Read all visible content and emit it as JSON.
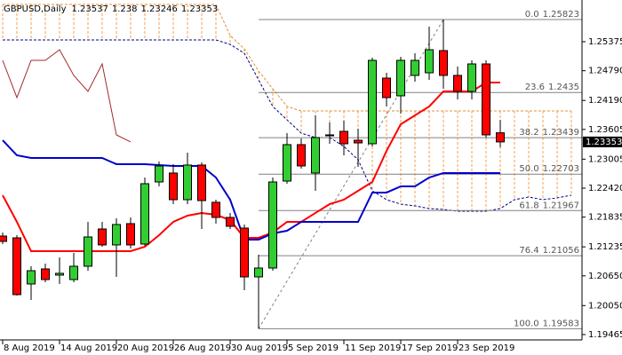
{
  "chart_data": {
    "type": "candlestick",
    "title": "GBPUSD,Daily",
    "categories": [
      "8 Aug 2019",
      null,
      null,
      null,
      "14 Aug 2019",
      null,
      null,
      null,
      "20 Aug 2019",
      null,
      null,
      null,
      "26 Aug 2019",
      null,
      null,
      null,
      "30 Aug 2019",
      null,
      null,
      null,
      "5 Sep 2019",
      null,
      null,
      null,
      "11 Sep 2019",
      null,
      null,
      null,
      "17 Sep 2019",
      null,
      null,
      null,
      "23 Sep 2019",
      null,
      null,
      null,
      null,
      null,
      null,
      null,
      null
    ],
    "open": [
      1.21453,
      1.21417,
      1.20486,
      1.2079,
      1.20665,
      1.20575,
      1.20844,
      1.21596,
      1.21274,
      1.21704,
      1.21292,
      1.22545,
      1.22725,
      1.22187,
      1.22886,
      1.22134,
      1.21829,
      1.21614,
      1.20629,
      1.20808,
      1.22563,
      1.23298,
      1.22725,
      1.23477,
      1.23566,
      1.23387,
      1.23316,
      1.24641,
      1.24283,
      1.24695,
      1.24748,
      1.25196,
      1.24695,
      1.24372,
      1.24927,
      1.23537,
      null,
      null,
      null,
      null,
      null
    ],
    "high": [
      1.21525,
      1.21471,
      1.20844,
      1.20898,
      1.21023,
      1.21113,
      1.21739,
      1.21739,
      1.21811,
      1.21829,
      1.22635,
      1.22957,
      1.22904,
      1.23136,
      1.22939,
      1.22187,
      1.21919,
      1.21686,
      1.21077,
      1.22635,
      1.2353,
      1.23423,
      1.23889,
      1.23745,
      1.23781,
      1.2362,
      1.25053,
      1.24748,
      1.25071,
      1.25142,
      1.2568,
      1.25823,
      1.24874,
      1.24999,
      1.24999,
      1.238,
      null,
      null,
      null,
      null,
      null
    ],
    "low": [
      1.21292,
      1.20253,
      1.20163,
      1.20522,
      1.20486,
      1.20522,
      1.20754,
      1.21238,
      1.20629,
      1.21202,
      1.21256,
      1.22456,
      1.22098,
      1.22098,
      1.21596,
      1.21704,
      1.21596,
      1.2036,
      1.19583,
      1.20754,
      1.2251,
      1.22814,
      1.22366,
      1.23316,
      1.23083,
      1.2285,
      1.23262,
      1.24068,
      1.23925,
      1.24569,
      1.24605,
      1.24426,
      1.24211,
      1.24211,
      1.23441,
      1.23246,
      null,
      null,
      null,
      null,
      null
    ],
    "close": [
      1.21345,
      1.20271,
      1.20754,
      1.20575,
      1.20701,
      1.20844,
      1.21435,
      1.21274,
      1.21686,
      1.21274,
      1.2251,
      1.22868,
      1.22187,
      1.22886,
      1.22169,
      1.21829,
      1.2165,
      1.20629,
      1.20808,
      1.22545,
      1.23298,
      1.22868,
      1.23441,
      1.23495,
      1.23316,
      1.23333,
      1.24999,
      1.24247,
      1.24999,
      1.24999,
      1.25214,
      1.24695,
      1.24372,
      1.24927,
      1.23495,
      1.23353,
      null,
      null,
      null,
      null,
      null
    ],
    "up_color": "#32cd32",
    "down_color": "#ff0000",
    "wick_color": "#000000",
    "lines": [
      {
        "color": "#ff0000",
        "width": 2,
        "values": [
          1.22277,
          1.21739,
          1.21148,
          1.21148,
          1.21148,
          1.21148,
          1.21148,
          1.21148,
          1.21148,
          1.21148,
          1.21238,
          1.21471,
          1.21739,
          1.21865,
          1.21919,
          1.21883,
          1.21775,
          1.21417,
          1.21417,
          1.21525,
          1.21739,
          1.21739,
          1.21919,
          1.22098,
          1.22187,
          1.22366,
          1.22545,
          1.23172,
          1.2371,
          1.23889,
          1.24068,
          1.24372,
          1.24372,
          1.24372,
          1.24551,
          1.24551,
          null,
          null,
          null,
          null,
          null
        ]
      },
      {
        "color": "#0000cd",
        "width": 2,
        "values": [
          1.23387,
          1.23083,
          1.23029,
          1.23029,
          1.23029,
          1.23029,
          1.23029,
          1.23029,
          1.22904,
          1.22904,
          1.22904,
          1.22886,
          1.22868,
          1.22868,
          1.22868,
          1.22635,
          1.22187,
          1.21381,
          1.21381,
          1.21507,
          1.2156,
          1.21739,
          1.21739,
          1.21739,
          1.21739,
          1.21739,
          1.22331,
          1.22331,
          1.22456,
          1.22456,
          1.22635,
          1.22725,
          1.22725,
          1.22725,
          1.22725,
          1.22725,
          null,
          null,
          null,
          null,
          null
        ]
      },
      {
        "color": "#a52a2a",
        "width": 1,
        "values": [
          1.24999,
          1.24247,
          1.24999,
          1.24999,
          1.25214,
          1.24695,
          1.24372,
          1.24927,
          1.23495,
          1.23353,
          null,
          null,
          null,
          null,
          null,
          null,
          null,
          null,
          null,
          null,
          null,
          null,
          null,
          null,
          null,
          null,
          null,
          null,
          null,
          null,
          null,
          null,
          null,
          null,
          null,
          null,
          null,
          null,
          null,
          null,
          null
        ]
      }
    ],
    "cloud": {
      "upper_color": "#e0903a",
      "lower_color": "#000080",
      "hatch_color": "#f0a050",
      "upper": [
        1.26127,
        1.26127,
        1.26127,
        1.26127,
        1.26127,
        1.26127,
        1.26127,
        1.26127,
        1.26127,
        1.26127,
        1.26127,
        1.26127,
        1.26127,
        1.26127,
        1.26127,
        1.26127,
        1.25501,
        1.25232,
        1.24784,
        1.24426,
        1.24068,
        1.23978,
        1.23978,
        1.23978,
        1.23978,
        1.23978,
        1.23978,
        1.23978,
        1.23978,
        1.23978,
        1.23978,
        1.23978,
        1.23978,
        1.23978,
        1.23978,
        1.23978,
        1.23978,
        1.23978,
        1.23978,
        1.23978,
        1.23978
      ],
      "lower": [
        1.25411,
        1.25411,
        1.25411,
        1.25411,
        1.25411,
        1.25411,
        1.25411,
        1.25411,
        1.25411,
        1.25411,
        1.25411,
        1.25411,
        1.25411,
        1.25411,
        1.25411,
        1.25411,
        1.25321,
        1.25142,
        1.24605,
        1.24068,
        1.23799,
        1.2353,
        1.23441,
        1.23441,
        1.23262,
        1.22993,
        1.22366,
        1.22187,
        1.22098,
        1.22062,
        1.22008,
        1.2199,
        1.21954,
        1.21954,
        1.21954,
        1.22008,
        1.22187,
        1.22241,
        1.22187,
        1.22223,
        1.22277
      ]
    },
    "fibo": {
      "color": "#808080",
      "levels": [
        {
          "ratio": "0.0",
          "price": 1.25823
        },
        {
          "ratio": "23.6",
          "price": 1.2435
        },
        {
          "ratio": "38.2",
          "price": 1.23439
        },
        {
          "ratio": "50.0",
          "price": 1.22703
        },
        {
          "ratio": "61.8",
          "price": 1.21967
        },
        {
          "ratio": "76.4",
          "price": 1.21056
        },
        {
          "ratio": "100.0",
          "price": 1.19583
        }
      ]
    },
    "ylim": [
      1.19375,
      1.26217
    ],
    "yticks": [
      1.25375,
      {
        "value": 1.2479,
        "label": "1.24790"
      },
      {
        "value": 1.2419,
        "label": "1.24190"
      },
      1.23605,
      1.23005,
      {
        "value": 1.2242,
        "label": "1.22420"
      },
      1.21835,
      1.21235,
      {
        "value": 1.2065,
        "label": "1.20650"
      },
      {
        "value": 1.2005,
        "label": "1.20050"
      },
      1.19465
    ]
  }
}
